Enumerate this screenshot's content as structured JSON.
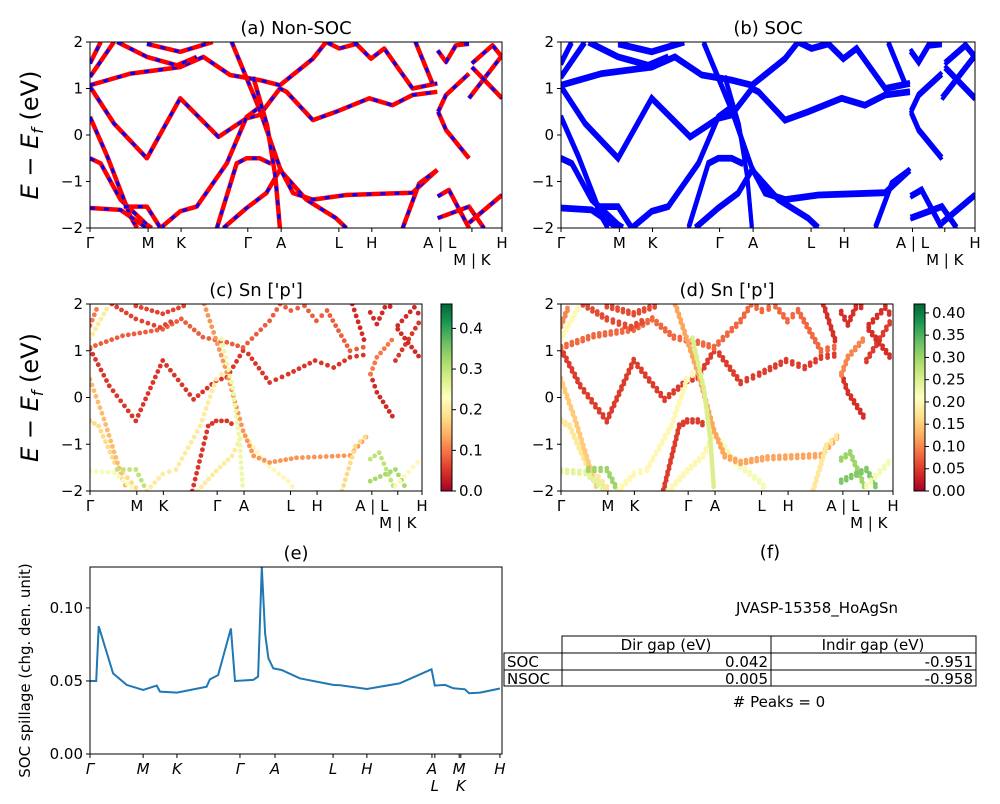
{
  "colors": {
    "nonsoc_line": "#ff0000",
    "nonsoc_dash": "#0000ff",
    "soc_line": "#0000ff",
    "spillage_line": "#1f77b4",
    "colormap": "RdYlGn"
  },
  "band_ylabel": {
    "main": "E − E",
    "sub": "f",
    "unit": " (eV)"
  },
  "kpath_labels": [
    "Γ",
    "M",
    "K",
    "Γ",
    "A",
    "L",
    "H",
    "A | L",
    "M | K",
    "H"
  ],
  "kpath_positions": [
    0,
    0.141,
    0.221,
    0.383,
    0.464,
    0.604,
    0.684,
    0.849,
    0.927,
    1
  ],
  "energy_ticks": [
    "−2",
    "−1",
    "0",
    "1",
    "2"
  ],
  "bands": [
    {
      "weight": 0.05,
      "points": [
        [
          0,
          1.04
        ],
        [
          0.058,
          0.25
        ],
        [
          0.138,
          -0.5
        ],
        [
          0.219,
          0.79
        ],
        [
          0.312,
          -0.04
        ],
        [
          0.38,
          0.36
        ],
        [
          0.412,
          0.43
        ],
        [
          0.461,
          1.0
        ],
        [
          0.477,
          0.93
        ],
        [
          0.541,
          0.32
        ],
        [
          0.597,
          0.5
        ],
        [
          0.678,
          0.79
        ],
        [
          0.734,
          0.64
        ],
        [
          0.783,
          0.86
        ],
        [
          0.843,
          0.93
        ]
      ]
    },
    {
      "weight": 0.08,
      "points": [
        [
          0,
          1.07
        ],
        [
          0.098,
          1.32
        ],
        [
          0.219,
          1.46
        ],
        [
          0.275,
          1.68
        ],
        [
          0.34,
          1.29
        ],
        [
          0.412,
          1.18
        ],
        [
          0.461,
          1.07
        ],
        [
          0.541,
          1.64
        ],
        [
          0.573,
          2.0
        ],
        [
          0.605,
          1.86
        ],
        [
          0.646,
          1.96
        ],
        [
          0.682,
          1.64
        ],
        [
          0.714,
          1.86
        ],
        [
          0.783,
          1.0
        ],
        [
          0.843,
          1.11
        ]
      ]
    },
    {
      "weight": 0.18,
      "points": [
        [
          0,
          -0.5
        ],
        [
          0.026,
          -0.61
        ],
        [
          0.074,
          -1.39
        ],
        [
          0.138,
          -1.93
        ],
        [
          0.15,
          -2.0
        ]
      ]
    },
    {
      "weight": 0.2,
      "points": [
        [
          0.171,
          -2.0
        ],
        [
          0.219,
          -1.64
        ],
        [
          0.259,
          -1.54
        ],
        [
          0.332,
          -0.61
        ],
        [
          0.38,
          0.39
        ],
        [
          0.412,
          0.6
        ]
      ]
    },
    {
      "weight": 0.05,
      "points": [
        [
          0.308,
          -2.0
        ],
        [
          0.356,
          -0.61
        ],
        [
          0.38,
          -0.5
        ],
        [
          0.412,
          -0.5
        ],
        [
          0.44,
          -0.62
        ]
      ]
    },
    {
      "weight": 0.22,
      "points": [
        [
          0.461,
          -0.75
        ],
        [
          0.525,
          -1.39
        ],
        [
          0.597,
          -1.79
        ],
        [
          0.622,
          -2.0
        ]
      ]
    },
    {
      "weight": 0.12,
      "points": [
        [
          0.344,
          2.0
        ],
        [
          0.412,
          0.54
        ],
        [
          0.461,
          -0.71
        ],
        [
          0.493,
          -1.25
        ],
        [
          0.541,
          -1.39
        ],
        [
          0.622,
          -1.29
        ],
        [
          0.783,
          -1.24
        ],
        [
          0.843,
          -0.75
        ]
      ]
    },
    {
      "weight": 0.2,
      "points": [
        [
          0.324,
          -2.0
        ],
        [
          0.38,
          -1.57
        ],
        [
          0.428,
          -1.25
        ],
        [
          0.461,
          -0.75
        ]
      ]
    },
    {
      "weight": 0.25,
      "points": [
        [
          0.396,
          1.25
        ],
        [
          0.43,
          0.2
        ],
        [
          0.45,
          -0.9
        ],
        [
          0.461,
          -2.0
        ]
      ]
    },
    {
      "weight": 0.15,
      "points": [
        [
          0,
          0.39
        ],
        [
          0.042,
          -0.46
        ],
        [
          0.098,
          -1.75
        ],
        [
          0.114,
          -2.0
        ]
      ]
    },
    {
      "weight": 0.24,
      "points": [
        [
          0,
          -1.57
        ],
        [
          0.074,
          -1.61
        ],
        [
          0.138,
          -2.0
        ]
      ]
    },
    {
      "weight": 0.3,
      "points": [
        [
          0.082,
          -1.54
        ],
        [
          0.138,
          -1.54
        ],
        [
          0.171,
          -2.0
        ]
      ]
    },
    {
      "weight": 0.2,
      "points": [
        [
          0,
          1.25
        ],
        [
          0.058,
          2.0
        ]
      ]
    },
    {
      "weight": 0.1,
      "points": [
        [
          0,
          1.54
        ],
        [
          0.026,
          2.0
        ]
      ]
    },
    {
      "weight": 0.06,
      "points": [
        [
          0.066,
          2.0
        ],
        [
          0.138,
          1.68
        ],
        [
          0.211,
          1.5
        ],
        [
          0.259,
          1.68
        ]
      ]
    },
    {
      "weight": 0.06,
      "points": [
        [
          0.138,
          1.96
        ],
        [
          0.219,
          1.79
        ],
        [
          0.298,
          2.0
        ]
      ]
    },
    {
      "weight": 0.04,
      "points": [
        [
          0.79,
          2.0
        ],
        [
          0.831,
          1.11
        ]
      ]
    },
    {
      "weight": 0.18,
      "points": [
        [
          0.759,
          -2.0
        ],
        [
          0.799,
          -1.04
        ],
        [
          0.843,
          -0.75
        ]
      ]
    },
    {
      "weight": 0.04,
      "points": [
        [
          0.845,
          0.5
        ],
        [
          0.864,
          0.11
        ],
        [
          0.92,
          -0.5
        ]
      ]
    },
    {
      "weight": 0.1,
      "points": [
        [
          0.845,
          0.5
        ],
        [
          0.864,
          0.86
        ],
        [
          0.92,
          1.32
        ]
      ]
    },
    {
      "weight": 0.04,
      "points": [
        [
          0.844,
          1.82
        ],
        [
          0.864,
          1.57
        ],
        [
          0.888,
          1.93
        ],
        [
          0.92,
          1.96
        ]
      ]
    },
    {
      "weight": 0.3,
      "points": [
        [
          0.844,
          -1.32
        ],
        [
          0.871,
          -1.18
        ],
        [
          0.92,
          -2.0
        ]
      ]
    },
    {
      "weight": 0.32,
      "points": [
        [
          0.844,
          -1.79
        ],
        [
          0.92,
          -1.54
        ],
        [
          0.956,
          -2.0
        ]
      ]
    },
    {
      "weight": 0.05,
      "points": [
        [
          0.92,
          0.79
        ],
        [
          1.0,
          1.71
        ]
      ]
    },
    {
      "weight": 0.04,
      "points": [
        [
          0.927,
          1.54
        ],
        [
          0.977,
          1.93
        ],
        [
          1.0,
          1.68
        ]
      ]
    },
    {
      "weight": 0.04,
      "points": [
        [
          0.927,
          1.46
        ],
        [
          1.0,
          0.79
        ]
      ]
    },
    {
      "weight": 0.22,
      "points": [
        [
          0.92,
          -1.89
        ],
        [
          1.0,
          -1.29
        ]
      ]
    }
  ],
  "chart_data": [
    {
      "type": "line",
      "title": "(a) Non-SOC",
      "ylim": [
        -2,
        2
      ]
    },
    {
      "type": "line",
      "title": "(b) SOC",
      "ylim": [
        -2,
        2
      ]
    },
    {
      "type": "scatter",
      "title": "(c)  Sn ['p']",
      "ylim": [
        -2,
        2
      ],
      "colorbar": {
        "range": [
          0,
          0.46
        ],
        "ticks": [
          "0.0",
          "0.1",
          "0.2",
          "0.3",
          "0.4"
        ]
      }
    },
    {
      "type": "scatter",
      "title": "(d) Sn ['p']",
      "ylim": [
        -2,
        2
      ],
      "colorbar": {
        "range": [
          0,
          0.42
        ],
        "ticks": [
          "0.00",
          "0.05",
          "0.10",
          "0.15",
          "0.20",
          "0.25",
          "0.30",
          "0.35",
          "0.40"
        ]
      }
    },
    {
      "type": "line",
      "title": "(e)",
      "ylabel": "SOC spillage (chg. den. unit)",
      "ylim": [
        0,
        0.128
      ],
      "yticks": [
        "0.00",
        "0.05",
        "0.10"
      ],
      "xticklabels": [
        "Γ",
        "M",
        "K",
        "Γ",
        "A",
        "L",
        "H",
        "A",
        "L",
        "M",
        "K",
        "H"
      ],
      "xtick_positions": [
        0,
        0.129,
        0.211,
        0.364,
        0.449,
        0.59,
        0.672,
        0.83,
        0.837,
        0.896,
        0.9,
        0.995
      ],
      "x": [
        0,
        0.015,
        0.021,
        0.056,
        0.089,
        0.129,
        0.162,
        0.17,
        0.211,
        0.283,
        0.291,
        0.311,
        0.342,
        0.352,
        0.396,
        0.408,
        0.417,
        0.425,
        0.433,
        0.445,
        0.465,
        0.509,
        0.59,
        0.607,
        0.672,
        0.752,
        0.829,
        0.837,
        0.862,
        0.882,
        0.91,
        0.92,
        0.947,
        0.995
      ],
      "y": [
        0.05,
        0.05,
        0.0875,
        0.0552,
        0.0473,
        0.0439,
        0.0468,
        0.0427,
        0.042,
        0.0461,
        0.0511,
        0.054,
        0.0859,
        0.05,
        0.0507,
        0.053,
        0.128,
        0.0825,
        0.0655,
        0.0586,
        0.0575,
        0.0518,
        0.0473,
        0.047,
        0.0445,
        0.0484,
        0.058,
        0.0468,
        0.0473,
        0.045,
        0.0443,
        0.0416,
        0.042,
        0.0448
      ]
    },
    {
      "type": "table",
      "title": "(f)",
      "caption": "JVASP-15358_HoAgSn",
      "columns": [
        "",
        "Dir gap (eV)",
        "Indir gap (eV)"
      ],
      "rows": [
        [
          "SOC",
          "0.042",
          "-0.951"
        ],
        [
          "NSOC",
          "0.005",
          "-0.958"
        ]
      ],
      "footer": "# Peaks = 0"
    }
  ]
}
